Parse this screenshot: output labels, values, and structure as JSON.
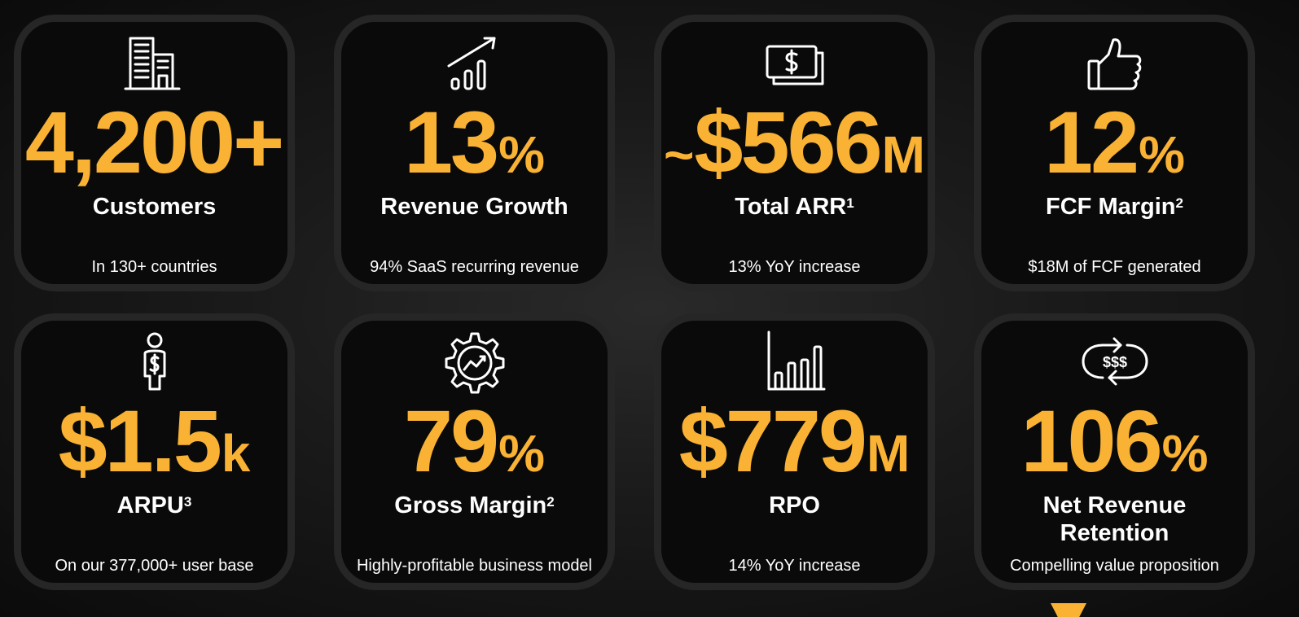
{
  "colors": {
    "accent": "#f9b233",
    "card_bg": "#0a0a0a",
    "card_border": "#262626"
  },
  "cards": [
    {
      "icon": "office-building-icon",
      "prefix": "",
      "number": "4,200+",
      "unit": "",
      "label": "Customers",
      "sup": "",
      "label2": "",
      "sub": "In 130+ countries"
    },
    {
      "icon": "growth-chart-icon",
      "prefix": "",
      "number": "13",
      "unit": "%",
      "label": "Revenue Growth",
      "sup": "",
      "label2": "",
      "sub": "94% SaaS recurring revenue"
    },
    {
      "icon": "banknotes-icon",
      "prefix": "~",
      "number": "$566",
      "unit": "M",
      "label": "Total ARR",
      "sup": "1",
      "label2": "",
      "sub": "13% YoY increase"
    },
    {
      "icon": "thumbs-up-icon",
      "prefix": "",
      "number": "12",
      "unit": "%",
      "label": "FCF Margin",
      "sup": "2",
      "label2": "",
      "sub": "$18M of FCF generated"
    },
    {
      "icon": "user-dollar-icon",
      "prefix": "",
      "number": "$1.5",
      "unit": "k",
      "label": "ARPU",
      "sup": "3",
      "label2": "",
      "sub": "On our 377,000+ user base"
    },
    {
      "icon": "gear-chart-icon",
      "prefix": "",
      "number": "79",
      "unit": "%",
      "label": "Gross Margin",
      "sup": "2",
      "label2": "",
      "sub": "Highly-profitable business model"
    },
    {
      "icon": "bar-chart-icon",
      "prefix": "",
      "number": "$779",
      "unit": "M",
      "label": "RPO",
      "sup": "",
      "label2": "",
      "sub": "14% YoY increase"
    },
    {
      "icon": "recurring-dollars-icon",
      "prefix": "",
      "number": "106",
      "unit": "%",
      "label": "Net Revenue",
      "sup": "",
      "label2": "Retention",
      "sub": "Compelling value proposition"
    }
  ]
}
